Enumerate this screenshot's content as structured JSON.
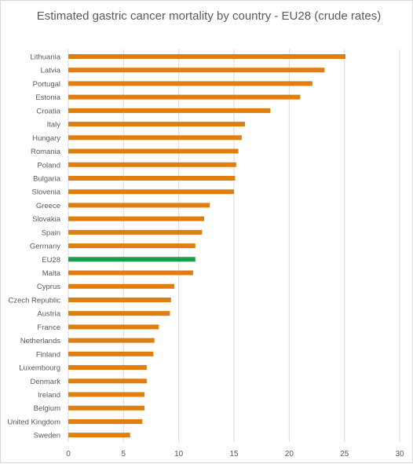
{
  "chart_data": {
    "type": "bar",
    "orientation": "horizontal",
    "title": "Estimated gastric cancer mortality by country - EU28 (crude rates)",
    "xlabel": "",
    "ylabel": "",
    "xlim": [
      0,
      30
    ],
    "x_ticks": [
      0,
      5,
      10,
      15,
      20,
      25,
      30
    ],
    "grid": "vertical",
    "legend": "none",
    "colors": {
      "bar": "#e07e10",
      "highlight": "#1a9c4b",
      "grid": "#d9d9d9",
      "text": "#595959"
    },
    "highlight_category": "EU28",
    "categories": [
      "Lithuania",
      "Latvia",
      "Portugal",
      "Estonia",
      "Croatia",
      "Italy",
      "Hungary",
      "Romania",
      "Poland",
      "Bulgaria",
      "Slovenia",
      "Greece",
      "Slovakia",
      "Spain",
      "Germany",
      "EU28",
      "Malta",
      "Cyprus",
      "Czech Republic",
      "Austria",
      "France",
      "Netherlands",
      "Finland",
      "Luxembourg",
      "Denmark",
      "Ireland",
      "Belgium",
      "United Kingdom",
      "Sweden"
    ],
    "values": [
      25.1,
      23.2,
      22.1,
      21.0,
      18.3,
      16.0,
      15.7,
      15.4,
      15.2,
      15.1,
      15.0,
      12.8,
      12.3,
      12.1,
      11.5,
      11.5,
      11.3,
      9.6,
      9.3,
      9.2,
      8.2,
      7.8,
      7.7,
      7.1,
      7.1,
      6.9,
      6.9,
      6.7,
      5.6
    ]
  }
}
